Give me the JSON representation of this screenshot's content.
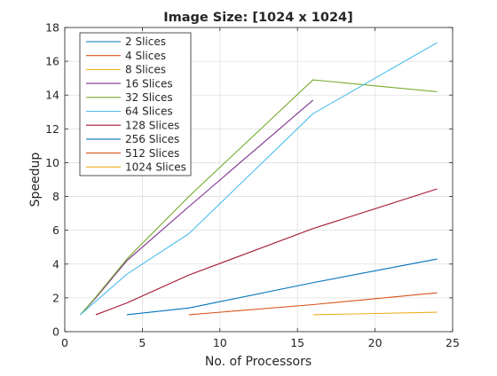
{
  "chart_data": {
    "type": "line",
    "title": "Image Size: [1024 x 1024]",
    "xlabel": "No. of Processors",
    "ylabel": "Speedup",
    "xlim": [
      0,
      25
    ],
    "ylim": [
      0,
      18
    ],
    "xticks": [
      0,
      5,
      10,
      15,
      20,
      25
    ],
    "yticks": [
      0,
      2,
      4,
      6,
      8,
      10,
      12,
      14,
      16,
      18
    ],
    "xtick_labels": [
      "0",
      "5",
      "10",
      "15",
      "20",
      "25"
    ],
    "ytick_labels": [
      "0",
      "2",
      "4",
      "6",
      "8",
      "10",
      "12",
      "14",
      "16",
      "18"
    ],
    "grid": true,
    "legend_position": "top-left",
    "series": [
      {
        "name": "2 Slices",
        "color": "#0072BD",
        "points": [
          [
            4,
            1.0
          ],
          [
            8,
            1.4
          ],
          [
            16,
            2.9
          ],
          [
            24,
            4.3
          ]
        ]
      },
      {
        "name": "4 Slices",
        "color": "#D95319",
        "points": [
          [
            8,
            1.0
          ],
          [
            16,
            1.6
          ],
          [
            24,
            2.3
          ]
        ]
      },
      {
        "name": "8 Slices",
        "color": "#EDB120",
        "points": [
          [
            16,
            1.0
          ],
          [
            24,
            1.15
          ]
        ]
      },
      {
        "name": "16 Slices",
        "color": "#7E2F8E",
        "points": [
          [
            1,
            1.0
          ],
          [
            2,
            2.0
          ],
          [
            4,
            4.2
          ],
          [
            8,
            7.4
          ],
          [
            16,
            13.7
          ]
        ]
      },
      {
        "name": "32 Slices",
        "color": "#77AC30",
        "points": [
          [
            1,
            1.0
          ],
          [
            2,
            2.05
          ],
          [
            4,
            4.3
          ],
          [
            8,
            8.0
          ],
          [
            16,
            14.9
          ],
          [
            24,
            14.2
          ]
        ]
      },
      {
        "name": "64 Slices",
        "color": "#4DBEEE",
        "points": [
          [
            1,
            1.0
          ],
          [
            2,
            1.8
          ],
          [
            4,
            3.4
          ],
          [
            8,
            5.8
          ],
          [
            16,
            12.9
          ],
          [
            24,
            17.1
          ]
        ]
      },
      {
        "name": "128 Slices",
        "color": "#A2142F",
        "points": [
          [
            2,
            1.0
          ],
          [
            4,
            1.7
          ],
          [
            8,
            3.35
          ],
          [
            16,
            6.1
          ],
          [
            24,
            8.45
          ]
        ]
      },
      {
        "name": "256 Slices",
        "color": "#0072BD",
        "points": []
      },
      {
        "name": "512 Slices",
        "color": "#D95319",
        "points": []
      },
      {
        "name": "1024 Slices",
        "color": "#EDB120",
        "points": []
      }
    ]
  }
}
